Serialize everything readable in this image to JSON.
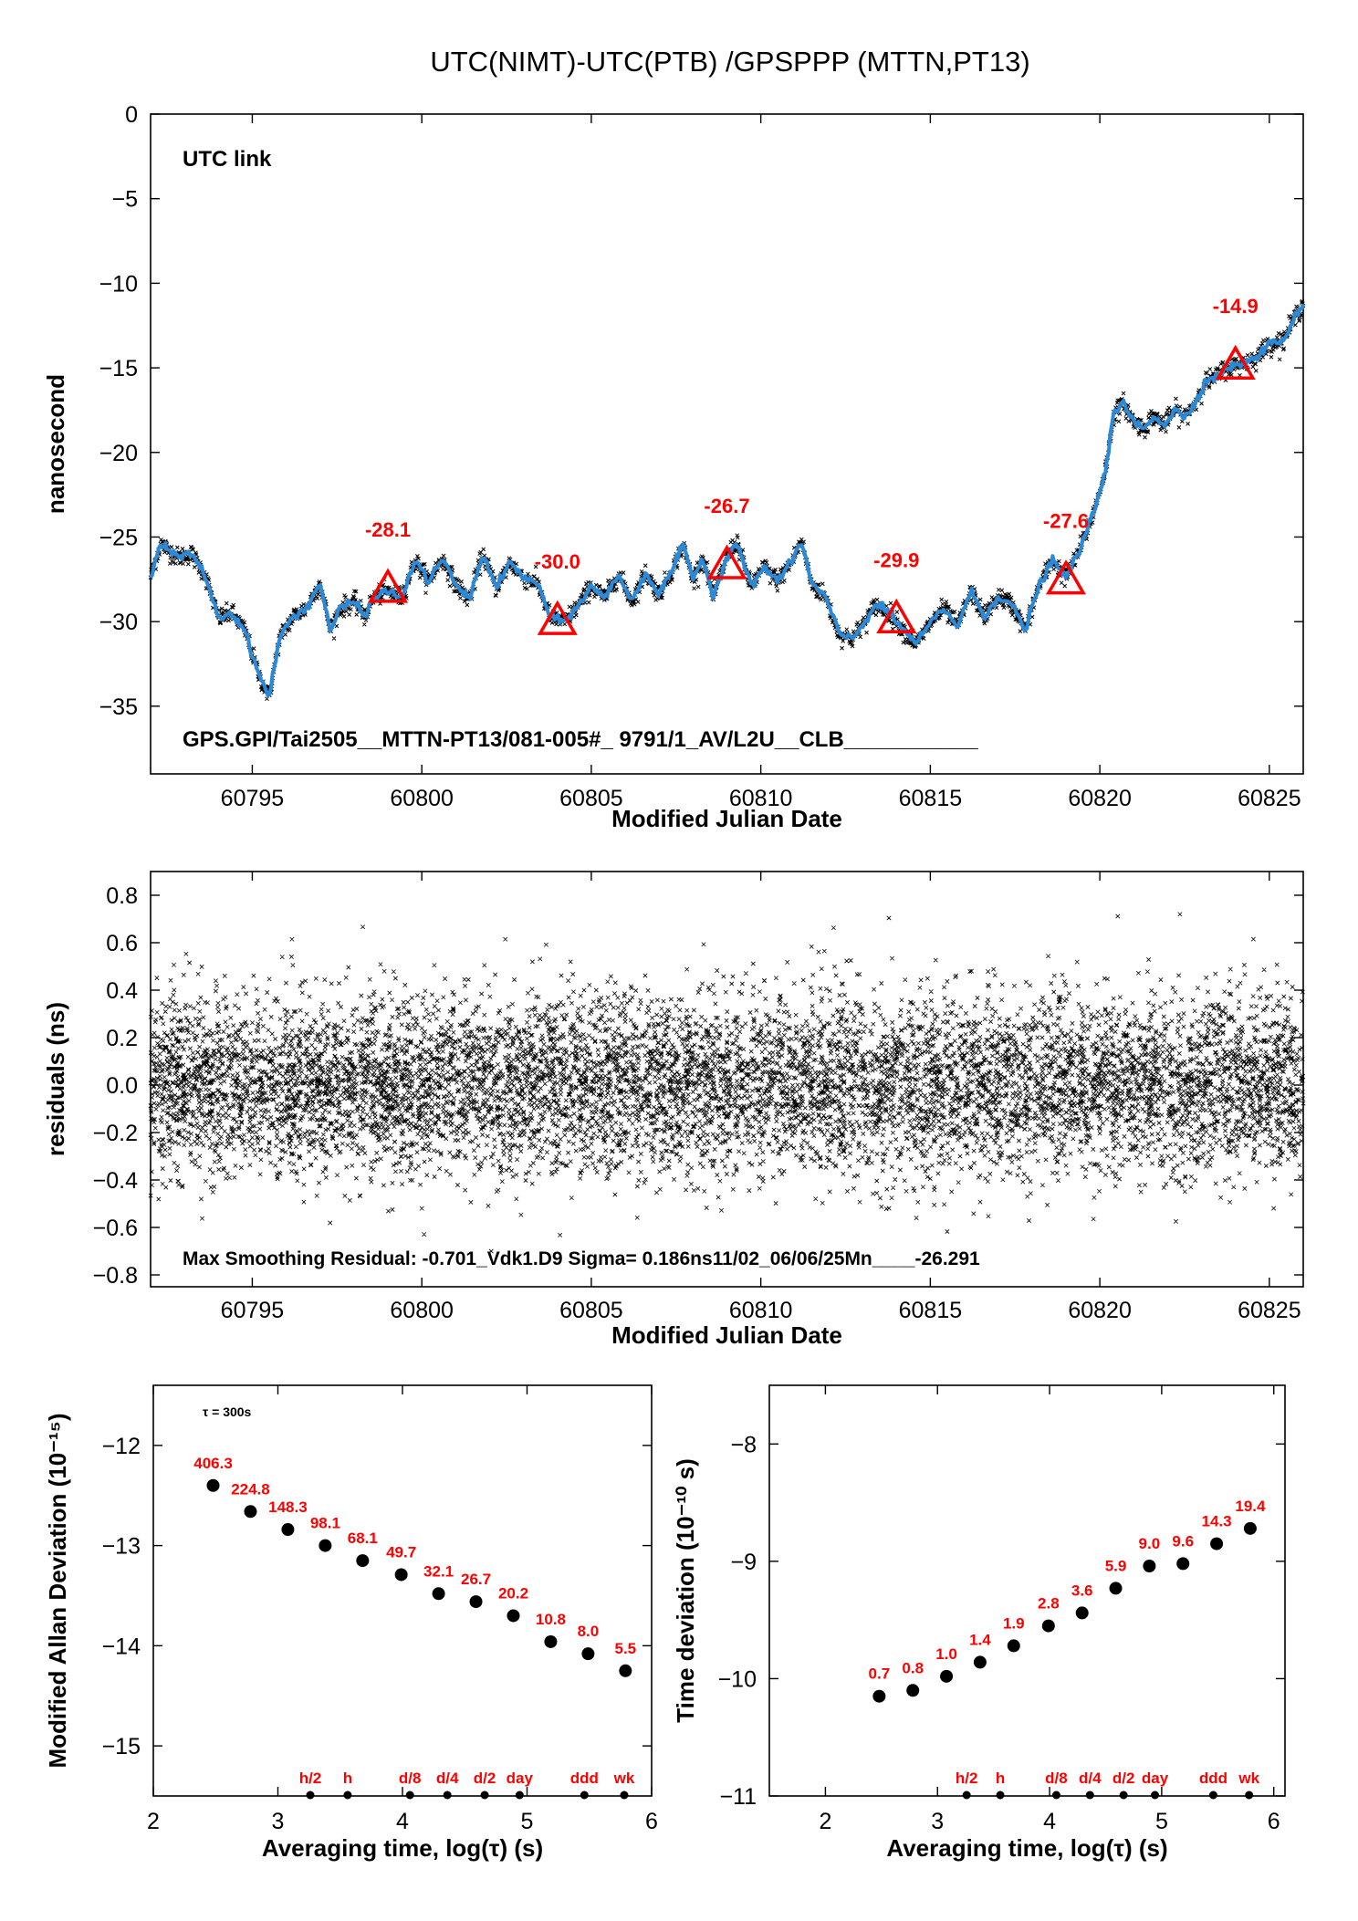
{
  "title": "UTC(NIMT)-UTC(PTB)  /GPSPPP  (MTTN,PT13)",
  "colors": {
    "series": "#2b8ad8",
    "raw": "#000000",
    "marker": "#ff0000",
    "link_label": "#6b8e23"
  },
  "chart_data": [
    {
      "type": "line",
      "name": "top",
      "xlabel": "Modified Julian Date",
      "ylabel": "nanosecond",
      "xlim": [
        60792,
        60826
      ],
      "ylim": [
        -39,
        0
      ],
      "xticks": [
        60795,
        60800,
        60805,
        60810,
        60815,
        60820,
        60825
      ],
      "yticks": [
        0,
        -5,
        -10,
        -15,
        -20,
        -25,
        -30,
        -35
      ],
      "ytick_labels": [
        "0",
        "−5",
        "−10",
        "−15",
        "−20",
        "−25",
        "−30",
        "−35"
      ],
      "link_label": "UTC link",
      "footer": "GPS.GPI/Tai2505__MTTN-PT13/081-005#_  9791/1_AV/L2U__CLB___________",
      "series_points": [
        [
          60792.0,
          -27.3
        ],
        [
          60792.3,
          -25.4
        ],
        [
          60792.8,
          -26.2
        ],
        [
          60793.2,
          -26.0
        ],
        [
          60793.6,
          -27.2
        ],
        [
          60794.0,
          -29.8
        ],
        [
          60794.4,
          -29.5
        ],
        [
          60794.8,
          -30.6
        ],
        [
          60795.2,
          -33.2
        ],
        [
          60795.5,
          -34.4
        ],
        [
          60795.8,
          -31.0
        ],
        [
          60796.2,
          -29.7
        ],
        [
          60796.6,
          -29.2
        ],
        [
          60797.0,
          -27.7
        ],
        [
          60797.3,
          -30.5
        ],
        [
          60797.6,
          -29.2
        ],
        [
          60798.0,
          -28.8
        ],
        [
          60798.3,
          -29.7
        ],
        [
          60798.6,
          -28.5
        ],
        [
          60799.0,
          -28.2
        ],
        [
          60799.4,
          -28.6
        ],
        [
          60799.8,
          -26.4
        ],
        [
          60800.2,
          -27.6
        ],
        [
          60800.6,
          -26.3
        ],
        [
          60801.0,
          -27.8
        ],
        [
          60801.4,
          -28.7
        ],
        [
          60801.8,
          -26.0
        ],
        [
          60802.2,
          -28.0
        ],
        [
          60802.6,
          -26.5
        ],
        [
          60803.0,
          -27.4
        ],
        [
          60803.4,
          -27.7
        ],
        [
          60803.8,
          -29.8
        ],
        [
          60804.2,
          -30.0
        ],
        [
          60804.6,
          -29.1
        ],
        [
          60805.0,
          -27.9
        ],
        [
          60805.4,
          -28.6
        ],
        [
          60805.8,
          -27.2
        ],
        [
          60806.2,
          -28.8
        ],
        [
          60806.6,
          -27.1
        ],
        [
          60807.0,
          -28.4
        ],
        [
          60807.4,
          -26.9
        ],
        [
          60807.7,
          -25.5
        ],
        [
          60808.0,
          -27.5
        ],
        [
          60808.3,
          -26.2
        ],
        [
          60808.6,
          -28.6
        ],
        [
          60809.0,
          -26.1
        ],
        [
          60809.3,
          -25.3
        ],
        [
          60809.7,
          -27.9
        ],
        [
          60810.1,
          -26.8
        ],
        [
          60810.5,
          -27.6
        ],
        [
          60810.9,
          -26.5
        ],
        [
          60811.2,
          -25.2
        ],
        [
          60811.5,
          -27.8
        ],
        [
          60811.9,
          -28.5
        ],
        [
          60812.3,
          -30.7
        ],
        [
          60812.7,
          -31.0
        ],
        [
          60813.0,
          -30.2
        ],
        [
          60813.4,
          -29.0
        ],
        [
          60813.8,
          -29.5
        ],
        [
          60814.2,
          -30.5
        ],
        [
          60814.6,
          -31.3
        ],
        [
          60815.0,
          -30.1
        ],
        [
          60815.4,
          -29.2
        ],
        [
          60815.8,
          -30.3
        ],
        [
          60816.2,
          -28.2
        ],
        [
          60816.6,
          -29.7
        ],
        [
          60817.0,
          -28.5
        ],
        [
          60817.4,
          -29.0
        ],
        [
          60817.8,
          -30.5
        ],
        [
          60818.2,
          -27.9
        ],
        [
          60818.6,
          -26.4
        ],
        [
          60819.0,
          -27.4
        ],
        [
          60819.3,
          -26.2
        ],
        [
          60819.6,
          -24.8
        ],
        [
          60819.9,
          -23.0
        ],
        [
          60820.2,
          -20.7
        ],
        [
          60820.4,
          -17.8
        ],
        [
          60820.7,
          -17.1
        ],
        [
          60821.0,
          -18.2
        ],
        [
          60821.3,
          -18.6
        ],
        [
          60821.6,
          -17.8
        ],
        [
          60821.9,
          -18.4
        ],
        [
          60822.2,
          -17.5
        ],
        [
          60822.5,
          -17.9
        ],
        [
          60822.8,
          -17.1
        ],
        [
          60823.1,
          -15.8
        ],
        [
          60823.4,
          -15.6
        ],
        [
          60823.7,
          -15.0
        ],
        [
          60824.0,
          -14.9
        ],
        [
          60824.3,
          -14.7
        ],
        [
          60824.6,
          -14.4
        ],
        [
          60825.0,
          -13.6
        ],
        [
          60825.4,
          -13.4
        ],
        [
          60825.7,
          -12.2
        ],
        [
          60826.0,
          -11.2
        ]
      ],
      "markers": [
        {
          "x": 60799.0,
          "y": -28.1,
          "label": "-28.1"
        },
        {
          "x": 60804.0,
          "y": -30.0,
          "label": "-30.0"
        },
        {
          "x": 60809.0,
          "y": -26.7,
          "label": "-26.7"
        },
        {
          "x": 60814.0,
          "y": -29.9,
          "label": "-29.9"
        },
        {
          "x": 60819.0,
          "y": -27.6,
          "label": "-27.6"
        },
        {
          "x": 60824.0,
          "y": -14.9,
          "label": "-14.9"
        }
      ]
    },
    {
      "type": "scatter",
      "name": "residuals",
      "xlabel": "Modified Julian Date",
      "ylabel": "residuals (ns)",
      "xlim": [
        60792,
        60826
      ],
      "ylim": [
        -0.85,
        0.9
      ],
      "xticks": [
        60795,
        60800,
        60805,
        60810,
        60815,
        60820,
        60825
      ],
      "yticks": [
        0.8,
        0.6,
        0.4,
        0.2,
        0.0,
        -0.2,
        -0.4,
        -0.6,
        -0.8
      ],
      "ytick_labels": [
        "0.8",
        "0.6",
        "0.4",
        "0.2",
        "0.0",
        "−0.2",
        "−0.4",
        "−0.6",
        "−0.8"
      ],
      "sigma": 0.186,
      "footer": "Max Smoothing Residual: -0.701_Vdk1.D9  Sigma= 0.186ns11/02_06/06/25Mn____-26.291"
    },
    {
      "type": "scatter",
      "name": "mdev",
      "xlabel": "Averaging time, log(τ) (s)",
      "ylabel": "Modified Allan Deviation (10⁻¹⁵)",
      "xlim": [
        2,
        6
      ],
      "ylim": [
        -15.5,
        -11.4
      ],
      "xticks": [
        2,
        3,
        4,
        5,
        6
      ],
      "yticks": [
        -12,
        -13,
        -14,
        -15
      ],
      "ytick_labels": [
        "−12",
        "−13",
        "−14",
        "−15"
      ],
      "tau_note": "τ = 300s",
      "points": [
        {
          "x": 2.48,
          "y": -12.4,
          "label": "406.3"
        },
        {
          "x": 2.78,
          "y": -12.66,
          "label": "224.8"
        },
        {
          "x": 3.08,
          "y": -12.84,
          "label": "148.3"
        },
        {
          "x": 3.38,
          "y": -13.0,
          "label": "98.1"
        },
        {
          "x": 3.68,
          "y": -13.15,
          "label": "68.1"
        },
        {
          "x": 3.99,
          "y": -13.29,
          "label": "49.7"
        },
        {
          "x": 4.29,
          "y": -13.48,
          "label": "32.1"
        },
        {
          "x": 4.59,
          "y": -13.56,
          "label": "26.7"
        },
        {
          "x": 4.89,
          "y": -13.7,
          "label": "20.2"
        },
        {
          "x": 5.19,
          "y": -13.96,
          "label": "10.8"
        },
        {
          "x": 5.49,
          "y": -14.08,
          "label": "8.0"
        },
        {
          "x": 5.79,
          "y": -14.25,
          "label": "5.5"
        }
      ],
      "time_markers": [
        {
          "x": 3.26,
          "label": "h/2"
        },
        {
          "x": 3.56,
          "label": "h"
        },
        {
          "x": 4.06,
          "label": "d/8"
        },
        {
          "x": 4.36,
          "label": "d/4"
        },
        {
          "x": 4.66,
          "label": "d/2"
        },
        {
          "x": 4.94,
          "label": "day"
        },
        {
          "x": 5.46,
          "label": "ddd"
        },
        {
          "x": 5.78,
          "label": "wk"
        }
      ]
    },
    {
      "type": "scatter",
      "name": "tdev",
      "xlabel": "Averaging time, log(τ) (s)",
      "ylabel": "Time deviation (10⁻¹⁰ s)",
      "xlim": [
        1.5,
        6.1
      ],
      "ylim": [
        -11,
        -7.5
      ],
      "xticks": [
        2,
        3,
        4,
        5,
        6
      ],
      "yticks": [
        -8,
        -9,
        -10,
        -11
      ],
      "ytick_labels": [
        "−8",
        "−9",
        "−10",
        "−11"
      ],
      "points": [
        {
          "x": 2.48,
          "y": -10.15,
          "label": "0.7"
        },
        {
          "x": 2.78,
          "y": -10.1,
          "label": "0.8"
        },
        {
          "x": 3.08,
          "y": -9.98,
          "label": "1.0"
        },
        {
          "x": 3.38,
          "y": -9.86,
          "label": "1.4"
        },
        {
          "x": 3.68,
          "y": -9.72,
          "label": "1.9"
        },
        {
          "x": 3.99,
          "y": -9.55,
          "label": "2.8"
        },
        {
          "x": 4.29,
          "y": -9.44,
          "label": "3.6"
        },
        {
          "x": 4.59,
          "y": -9.23,
          "label": "5.9"
        },
        {
          "x": 4.89,
          "y": -9.04,
          "label": "9.0"
        },
        {
          "x": 5.19,
          "y": -9.02,
          "label": "9.6"
        },
        {
          "x": 5.49,
          "y": -8.85,
          "label": "14.3"
        },
        {
          "x": 5.79,
          "y": -8.72,
          "label": "19.4"
        }
      ],
      "time_markers": [
        {
          "x": 3.26,
          "label": "h/2"
        },
        {
          "x": 3.56,
          "label": "h"
        },
        {
          "x": 4.06,
          "label": "d/8"
        },
        {
          "x": 4.36,
          "label": "d/4"
        },
        {
          "x": 4.66,
          "label": "d/2"
        },
        {
          "x": 4.94,
          "label": "day"
        },
        {
          "x": 5.46,
          "label": "ddd"
        },
        {
          "x": 5.78,
          "label": "wk"
        }
      ]
    }
  ]
}
